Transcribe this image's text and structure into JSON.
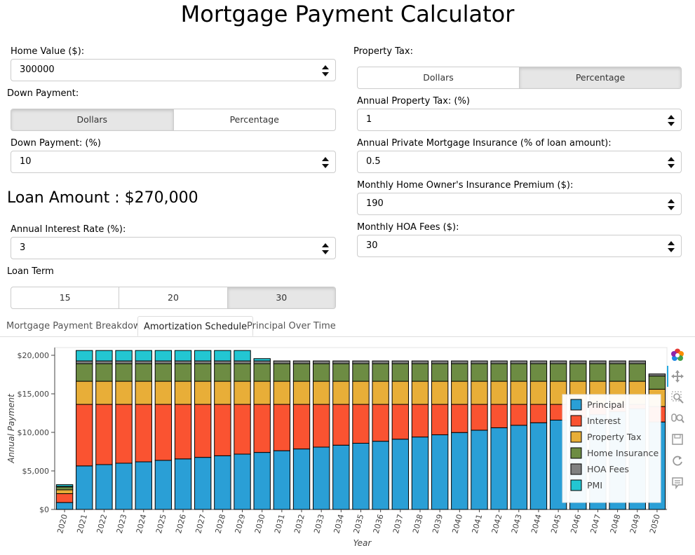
{
  "title": "Mortgage Payment Calculator",
  "home_value": {
    "label": "Home Value ($):",
    "value": "300000"
  },
  "down_payment": {
    "label": "Down Payment:",
    "options": [
      "Dollars",
      "Percentage"
    ],
    "selected": "Dollars",
    "field_label": "Down Payment: (%)",
    "value": "10"
  },
  "loan_amount": "Loan Amount : $270,000",
  "interest": {
    "label": "Annual Interest Rate (%):",
    "value": "3"
  },
  "loan_term": {
    "label": "Loan Term",
    "options": [
      "15",
      "20",
      "30"
    ],
    "selected": "30"
  },
  "property_tax": {
    "label": "Property Tax:",
    "options": [
      "Dollars",
      "Percentage"
    ],
    "selected": "Percentage",
    "field_label": "Annual Property Tax: (%)",
    "value": "1"
  },
  "pmi": {
    "label": "Annual Private Mortgage Insurance (% of loan amount):",
    "value": "0.5"
  },
  "home_insurance": {
    "label": "Monthly Home Owner's Insurance Premium ($):",
    "value": "190"
  },
  "hoa": {
    "label": "Monthly HOA Fees ($):",
    "value": "30"
  },
  "tabs": [
    "Mortgage Payment Breakdown",
    "Amortization Schedule",
    "Principal Over Time"
  ],
  "active_tab": "Amortization Schedule",
  "toolbar_icons": [
    "bokeh-logo-icon",
    "pan-icon",
    "box-zoom-icon",
    "wheel-zoom-icon",
    "save-icon",
    "reset-icon",
    "hover-icon"
  ],
  "chart_data": {
    "type": "bar",
    "stacked": true,
    "xlabel": "Year",
    "ylabel": "Annual Payment",
    "ylim": [
      0,
      21000
    ],
    "yticks": [
      "$0",
      "$5,000",
      "$10,000",
      "$15,000",
      "$20,000"
    ],
    "categories": [
      "2020",
      "2021",
      "2022",
      "2023",
      "2024",
      "2025",
      "2026",
      "2027",
      "2028",
      "2029",
      "2030",
      "2031",
      "2032",
      "2033",
      "2034",
      "2035",
      "2036",
      "2037",
      "2038",
      "2039",
      "2040",
      "2041",
      "2042",
      "2043",
      "2044",
      "2045",
      "2046",
      "2047",
      "2048",
      "2049",
      "2050"
    ],
    "series": [
      {
        "name": "Principal",
        "color": "#2a9fd6",
        "values": [
          900,
          5650,
          5820,
          6000,
          6180,
          6370,
          6560,
          6760,
          6970,
          7180,
          7400,
          7620,
          7850,
          8090,
          8340,
          8590,
          8850,
          9120,
          9400,
          9690,
          9980,
          10280,
          10600,
          10920,
          11250,
          11590,
          11950,
          12310,
          12690,
          13070,
          11350
        ]
      },
      {
        "name": "Interest",
        "color": "#fa5331",
        "values": [
          1150,
          7980,
          7810,
          7630,
          7450,
          7260,
          7070,
          6870,
          6660,
          6450,
          6230,
          6010,
          5780,
          5540,
          5290,
          5040,
          4780,
          4510,
          4230,
          3940,
          3650,
          3350,
          3030,
          2710,
          2380,
          2040,
          1680,
          1320,
          940,
          560,
          2000
        ]
      },
      {
        "name": "Property Tax",
        "color": "#e8ae38",
        "values": [
          500,
          3000,
          3000,
          3000,
          3000,
          3000,
          3000,
          3000,
          3000,
          3000,
          3000,
          3000,
          3000,
          3000,
          3000,
          3000,
          3000,
          3000,
          3000,
          3000,
          3000,
          3000,
          3000,
          3000,
          3000,
          3000,
          3000,
          3000,
          3000,
          3000,
          2250
        ]
      },
      {
        "name": "Home Insurance",
        "color": "#6d8c43",
        "values": [
          380,
          2280,
          2280,
          2280,
          2280,
          2280,
          2280,
          2280,
          2280,
          2280,
          2280,
          2280,
          2280,
          2280,
          2280,
          2280,
          2280,
          2280,
          2280,
          2280,
          2280,
          2280,
          2280,
          2280,
          2280,
          2280,
          2280,
          2280,
          2280,
          2280,
          1710
        ]
      },
      {
        "name": "HOA Fees",
        "color": "#808080",
        "values": [
          60,
          360,
          360,
          360,
          360,
          360,
          360,
          360,
          360,
          360,
          360,
          360,
          360,
          360,
          360,
          360,
          360,
          360,
          360,
          360,
          360,
          360,
          360,
          360,
          360,
          360,
          360,
          360,
          360,
          360,
          270
        ]
      },
      {
        "name": "PMI",
        "color": "#23c6d2",
        "values": [
          225,
          1350,
          1350,
          1350,
          1350,
          1350,
          1350,
          1350,
          1350,
          1350,
          300,
          0,
          0,
          0,
          0,
          0,
          0,
          0,
          0,
          0,
          0,
          0,
          0,
          0,
          0,
          0,
          0,
          0,
          0,
          0,
          0
        ]
      }
    ]
  }
}
